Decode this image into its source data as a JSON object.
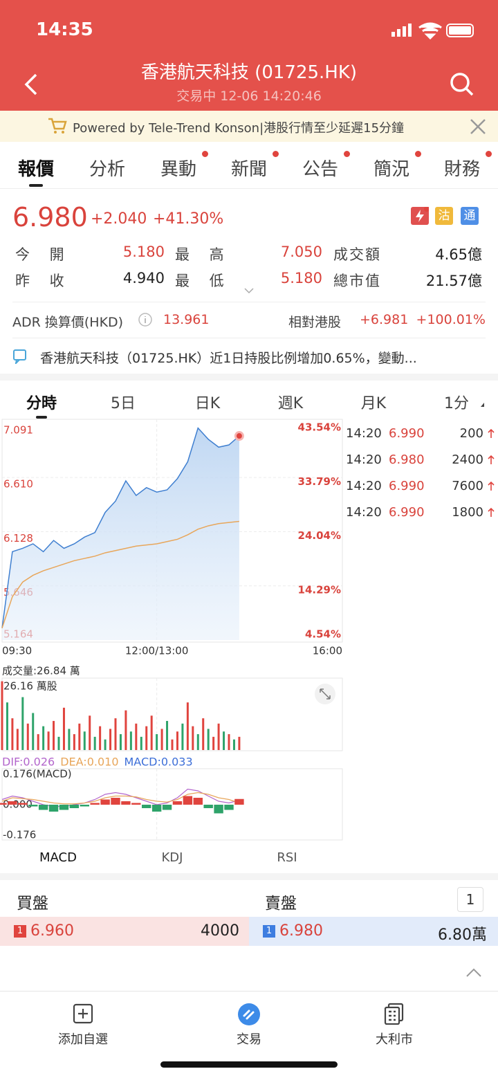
{
  "status_bar": {
    "time": "14:35"
  },
  "header": {
    "title": "香港航天科技 (01725.HK)",
    "subtitle": "交易中 12-06 14:20:46"
  },
  "banner": {
    "text": "Powered by Tele-Trend Konson|港股行情至少延遲15分鐘"
  },
  "tabs": [
    "報價",
    "分析",
    "異動",
    "新聞",
    "公告",
    "簡況",
    "財務"
  ],
  "quote": {
    "price": "6.980",
    "change": "+2.040",
    "change_pct": "+41.30%",
    "badges": [
      "沽",
      "通"
    ],
    "stats": [
      [
        "今 開",
        "5.180",
        "最 高",
        "7.050",
        "成交額",
        "4.65億"
      ],
      [
        "昨 收",
        "4.940",
        "最 低",
        "5.180",
        "總市值",
        "21.57億"
      ]
    ],
    "adr_label": "ADR 換算價(HKD)",
    "adr_value": "13.961",
    "relative_label": "相對港股",
    "relative_change": "+6.981",
    "relative_pct": "+100.01%"
  },
  "news": {
    "text": "香港航天科技（01725.HK）近1日持股比例增加0.65%，變動..."
  },
  "chart_tabs": [
    "分時",
    "5日",
    "日K",
    "週K",
    "月K",
    "1分"
  ],
  "chart_data": [
    {
      "type": "line",
      "area": true,
      "x": [
        0,
        10,
        20,
        30,
        40,
        50,
        60,
        70,
        80,
        90,
        100,
        110,
        120,
        130,
        140,
        150,
        160,
        170,
        180,
        190,
        200,
        210,
        220,
        230
      ],
      "xlim": [
        0,
        330
      ],
      "xticks": [
        {
          "value": 0,
          "label": "09:30"
        },
        {
          "value": 150,
          "label": "12:00/13:00"
        },
        {
          "value": 330,
          "label": "16:00"
        }
      ],
      "ylim": [
        5.164,
        7.091
      ],
      "yticks": [
        7.091,
        {
          "value": 6.61,
          "label": "6.610"
        },
        6.128,
        5.646,
        5.164
      ],
      "y2lim": [
        4.54,
        43.54
      ],
      "y2ticks": [
        {
          "value": 43.54,
          "label": "43.54%"
        },
        {
          "value": 33.79,
          "label": "33.79%"
        },
        {
          "value": 24.04,
          "label": "24.04%"
        },
        {
          "value": 14.29,
          "label": "14.29%"
        },
        {
          "value": 4.54,
          "label": "4.54%"
        }
      ],
      "grid": true,
      "series": [
        {
          "color": "#3f7fd0",
          "values": [
            5.27,
            5.95,
            5.98,
            6.02,
            5.95,
            6.05,
            5.98,
            6.02,
            6.08,
            6.12,
            6.3,
            6.4,
            6.58,
            6.45,
            6.52,
            6.48,
            6.5,
            6.6,
            6.75,
            7.05,
            6.95,
            6.88,
            6.9,
            6.98
          ]
        },
        {
          "color": "#e8a65a",
          "values": [
            5.27,
            5.55,
            5.68,
            5.74,
            5.78,
            5.81,
            5.84,
            5.87,
            5.89,
            5.91,
            5.94,
            5.96,
            5.98,
            6.0,
            6.01,
            6.02,
            6.04,
            6.06,
            6.1,
            6.15,
            6.18,
            6.2,
            6.21,
            6.22
          ]
        }
      ]
    },
    {
      "type": "bar",
      "title": "成交量:26.84 萬",
      "xlim": [
        0,
        330
      ],
      "x": [
        0,
        5,
        10,
        15,
        20,
        25,
        30,
        35,
        40,
        45,
        50,
        55,
        60,
        65,
        70,
        75,
        80,
        85,
        90,
        95,
        100,
        105,
        110,
        115,
        120,
        125,
        130,
        135,
        140,
        145,
        150,
        155,
        160,
        165,
        170,
        175,
        180,
        185,
        190,
        195,
        200,
        205,
        210,
        215,
        220,
        225,
        230
      ],
      "ylim": [
        0,
        26.16
      ],
      "yticks": [
        {
          "value": 26.16,
          "label": "26.16 萬股"
        }
      ],
      "values": [
        26,
        18,
        12,
        8,
        20,
        10,
        14,
        6,
        9,
        7,
        11,
        5,
        16,
        8,
        6,
        10,
        7,
        13,
        5,
        9,
        4,
        8,
        12,
        6,
        15,
        7,
        10,
        5,
        9,
        13,
        6,
        8,
        11,
        4,
        7,
        10,
        18,
        9,
        6,
        12,
        8,
        5,
        10,
        7,
        6,
        4,
        5
      ],
      "colors": [
        "#e0443e",
        "#2ea36a",
        "#e0443e",
        "#e0443e",
        "#2ea36a",
        "#e0443e",
        "#2ea36a",
        "#e0443e",
        "#2ea36a",
        "#e0443e",
        "#e0443e",
        "#2ea36a",
        "#e0443e",
        "#2ea36a",
        "#e0443e",
        "#e0443e",
        "#2ea36a",
        "#e0443e",
        "#2ea36a",
        "#e0443e",
        "#2ea36a",
        "#e0443e",
        "#e0443e",
        "#2ea36a",
        "#e0443e",
        "#2ea36a",
        "#e0443e",
        "#2ea36a",
        "#e0443e",
        "#e0443e",
        "#2ea36a",
        "#e0443e",
        "#2ea36a",
        "#e0443e",
        "#e0443e",
        "#2ea36a",
        "#e0443e",
        "#e0443e",
        "#2ea36a",
        "#e0443e",
        "#2ea36a",
        "#e0443e",
        "#e0443e",
        "#2ea36a",
        "#e0443e",
        "#2ea36a",
        "#e0443e"
      ]
    },
    {
      "type": "macd",
      "xlim": [
        0,
        330
      ],
      "x": [
        0,
        10,
        20,
        30,
        40,
        50,
        60,
        70,
        80,
        90,
        100,
        110,
        120,
        130,
        140,
        150,
        160,
        170,
        180,
        190,
        200,
        210,
        220,
        230
      ],
      "ylim": [
        -0.2,
        0.2
      ],
      "yticks": [
        {
          "value": 0.176,
          "label": "0.176(MACD)"
        },
        {
          "value": 0,
          "label": "0.000"
        },
        -0.176
      ],
      "up_color": "#e0443e",
      "down_color": "#2ea36a",
      "series": [
        {
          "name": "DIF:0.026",
          "color": "#b366cc",
          "values": [
            0.03,
            0.05,
            0.04,
            0.02,
            0.0,
            -0.01,
            -0.01,
            0.0,
            0.01,
            0.03,
            0.06,
            0.07,
            0.06,
            0.04,
            0.02,
            0.0,
            0.01,
            0.04,
            0.09,
            0.08,
            0.05,
            0.02,
            0.01,
            0.026
          ]
        },
        {
          "name": "DEA:0.010",
          "color": "#e8a65a",
          "values": [
            0.02,
            0.04,
            0.035,
            0.03,
            0.02,
            0.01,
            0.005,
            0.005,
            0.01,
            0.02,
            0.04,
            0.05,
            0.05,
            0.045,
            0.03,
            0.02,
            0.015,
            0.03,
            0.06,
            0.07,
            0.06,
            0.04,
            0.03,
            0.01
          ]
        },
        {
          "name": "MACD:0.033",
          "color": "#3d6fd8",
          "type": "bar",
          "values": [
            0.01,
            0.02,
            0.01,
            -0.01,
            -0.03,
            -0.04,
            -0.03,
            -0.02,
            -0.01,
            0.01,
            0.03,
            0.04,
            0.02,
            0.01,
            -0.02,
            -0.04,
            -0.03,
            0.02,
            0.05,
            0.04,
            -0.02,
            -0.05,
            -0.03,
            0.033
          ]
        }
      ]
    }
  ],
  "trades": [
    [
      "14:20",
      "6.990",
      "200"
    ],
    [
      "14:20",
      "6.980",
      "2400"
    ],
    [
      "14:20",
      "6.990",
      "7600"
    ],
    [
      "14:20",
      "6.990",
      "1800"
    ]
  ],
  "indicator_tabs": [
    "MACD",
    "KDJ",
    "RSI"
  ],
  "order_book": {
    "bid_label": "買盤",
    "ask_label": "賣盤",
    "depth": "1",
    "bid": {
      "level": "1",
      "price": "6.960",
      "volume": "4000"
    },
    "ask": {
      "level": "1",
      "price": "6.980",
      "volume": "6.80萬"
    }
  },
  "nav": [
    "添加自選",
    "交易",
    "大利市"
  ]
}
